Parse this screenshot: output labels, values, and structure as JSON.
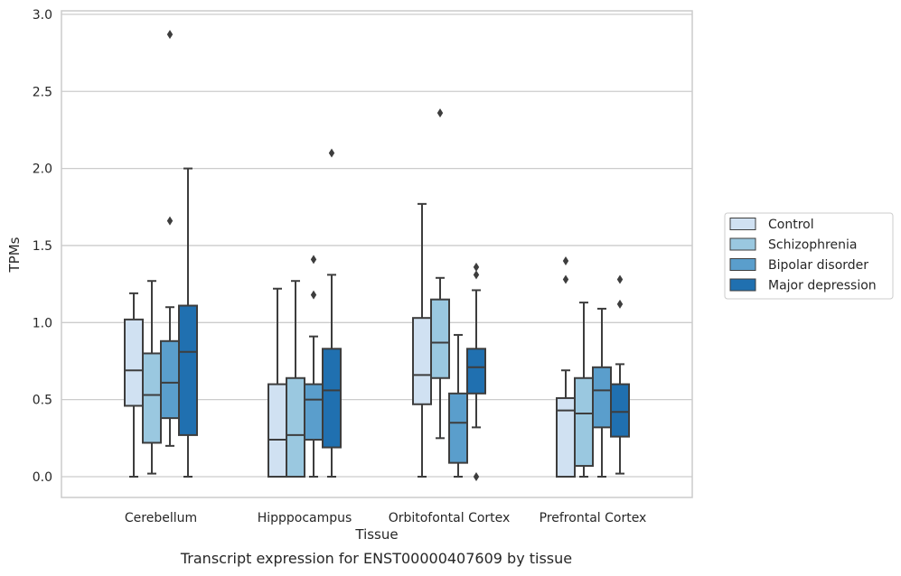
{
  "caption": "Transcript expression for ENST00000407609 by tissue",
  "chart_data": {
    "type": "box",
    "xlabel": "Tissue",
    "ylabel": "TPMs",
    "ylim": [
      -0.14,
      3.02
    ],
    "yticks": [
      "0.0",
      "0.5",
      "1.0",
      "1.5",
      "2.0",
      "2.5",
      "3.0"
    ],
    "grid": "horizontal",
    "legend_position": "right",
    "categories": [
      "Cerebellum",
      "Hipppocampus",
      "Orbitofontal Cortex",
      "Prefrontal Cortex"
    ],
    "series": [
      {
        "name": "Control",
        "color": "#d0e1f2",
        "boxes": [
          {
            "whislo": 0.0,
            "q1": 0.46,
            "med": 0.69,
            "q3": 1.02,
            "whishi": 1.19,
            "fliers": []
          },
          {
            "whislo": 0.0,
            "q1": 0.0,
            "med": 0.24,
            "q3": 0.6,
            "whishi": 1.22,
            "fliers": []
          },
          {
            "whislo": 0.0,
            "q1": 0.47,
            "med": 0.66,
            "q3": 1.03,
            "whishi": 1.77,
            "fliers": []
          },
          {
            "whislo": 0.0,
            "q1": 0.0,
            "med": 0.43,
            "q3": 0.51,
            "whishi": 0.69,
            "fliers": [
              1.28,
              1.4
            ]
          }
        ]
      },
      {
        "name": "Schizophrenia",
        "color": "#9ac8e0",
        "boxes": [
          {
            "whislo": 0.02,
            "q1": 0.22,
            "med": 0.53,
            "q3": 0.8,
            "whishi": 1.27,
            "fliers": []
          },
          {
            "whislo": 0.0,
            "q1": 0.0,
            "med": 0.27,
            "q3": 0.64,
            "whishi": 1.27,
            "fliers": []
          },
          {
            "whislo": 0.25,
            "q1": 0.64,
            "med": 0.87,
            "q3": 1.15,
            "whishi": 1.29,
            "fliers": [
              2.36
            ]
          },
          {
            "whislo": 0.0,
            "q1": 0.07,
            "med": 0.41,
            "q3": 0.64,
            "whishi": 1.13,
            "fliers": []
          }
        ]
      },
      {
        "name": "Bipolar disorder",
        "color": "#5a9ecc",
        "boxes": [
          {
            "whislo": 0.2,
            "q1": 0.38,
            "med": 0.61,
            "q3": 0.88,
            "whishi": 1.1,
            "fliers": [
              1.66,
              2.87
            ]
          },
          {
            "whislo": 0.0,
            "q1": 0.24,
            "med": 0.5,
            "q3": 0.6,
            "whishi": 0.91,
            "fliers": [
              1.18,
              1.41
            ]
          },
          {
            "whislo": 0.0,
            "q1": 0.09,
            "med": 0.35,
            "q3": 0.54,
            "whishi": 0.92,
            "fliers": []
          },
          {
            "whislo": 0.0,
            "q1": 0.32,
            "med": 0.56,
            "q3": 0.71,
            "whishi": 1.09,
            "fliers": []
          }
        ]
      },
      {
        "name": "Major depression",
        "color": "#2070b0",
        "boxes": [
          {
            "whislo": 0.0,
            "q1": 0.27,
            "med": 0.81,
            "q3": 1.11,
            "whishi": 2.0,
            "fliers": []
          },
          {
            "whislo": 0.0,
            "q1": 0.19,
            "med": 0.56,
            "q3": 0.83,
            "whishi": 1.31,
            "fliers": [
              2.1
            ]
          },
          {
            "whislo": 0.32,
            "q1": 0.54,
            "med": 0.71,
            "q3": 0.83,
            "whishi": 1.21,
            "fliers": [
              0.0,
              1.31,
              1.36
            ]
          },
          {
            "whislo": 0.02,
            "q1": 0.26,
            "med": 0.42,
            "q3": 0.6,
            "whishi": 0.73,
            "fliers": [
              1.12,
              1.28
            ]
          }
        ]
      }
    ]
  }
}
